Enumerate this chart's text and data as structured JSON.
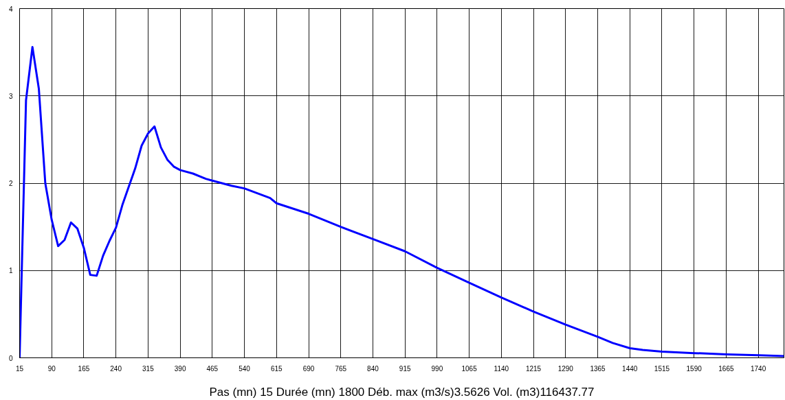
{
  "chart_data": {
    "type": "line",
    "xlabel": "Pas (mn) 15 Durée (mn) 1800 Déb. max (m3/s)3.5626 Vol. (m3)116437.77",
    "x": [
      15,
      30,
      45,
      60,
      75,
      90,
      105,
      120,
      135,
      150,
      165,
      180,
      195,
      210,
      225,
      240,
      255,
      270,
      285,
      300,
      315,
      330,
      345,
      360,
      375,
      390,
      420,
      450,
      465,
      510,
      540,
      600,
      615,
      690,
      765,
      840,
      915,
      990,
      1065,
      1140,
      1215,
      1290,
      1365,
      1400,
      1440,
      1470,
      1515,
      1590,
      1665,
      1740,
      1800
    ],
    "series": [
      {
        "color": "#0000ff",
        "values": [
          0,
          2.95,
          3.56,
          3.08,
          2.0,
          1.58,
          1.28,
          1.35,
          1.55,
          1.48,
          1.26,
          0.95,
          0.94,
          1.17,
          1.34,
          1.49,
          1.75,
          1.96,
          2.17,
          2.43,
          2.57,
          2.65,
          2.41,
          2.27,
          2.19,
          2.15,
          2.11,
          2.05,
          2.03,
          1.97,
          1.94,
          1.83,
          1.77,
          1.65,
          1.5,
          1.36,
          1.22,
          1.03,
          0.86,
          0.69,
          0.53,
          0.38,
          0.24,
          0.17,
          0.11,
          0.09,
          0.07,
          0.054,
          0.04,
          0.03,
          0.02
        ]
      }
    ],
    "xlim": [
      15,
      1800
    ],
    "ylim": [
      0,
      4
    ],
    "xticks": [
      15,
      90,
      165,
      240,
      315,
      390,
      465,
      540,
      615,
      690,
      765,
      840,
      915,
      990,
      1065,
      1140,
      1215,
      1290,
      1365,
      1440,
      1515,
      1590,
      1665,
      1740
    ],
    "yticks": [
      0,
      1,
      2,
      3,
      4
    ],
    "grid": true,
    "marker": "none",
    "line_style": "solid"
  }
}
